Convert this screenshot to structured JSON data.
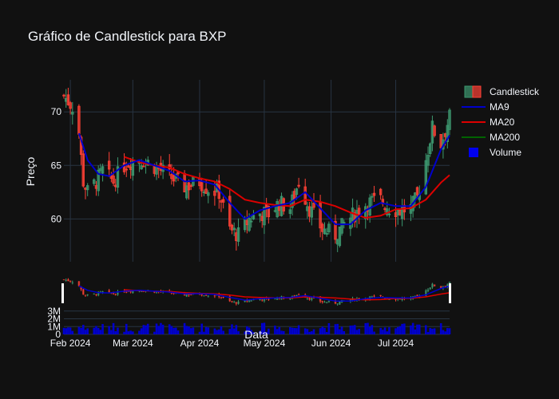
{
  "chart_data": {
    "type": "candlestick",
    "title": "Gráfico de Candlestick para BXP",
    "ylabel": "Preço",
    "xlabel": "Data",
    "ylim": [
      56,
      73
    ],
    "yticks": [
      60,
      65,
      70
    ],
    "volume_ylim": [
      0,
      4000000
    ],
    "volume_yticks": [
      {
        "v": 0,
        "label": "0"
      },
      {
        "v": 1000000,
        "label": "1M"
      },
      {
        "v": 2000000,
        "label": "2M"
      },
      {
        "v": 3000000,
        "label": "3M"
      }
    ],
    "x_start": "2024-01-29",
    "x_end": "2024-07-26",
    "xticks": [
      {
        "date": "2024-02-01",
        "label": "Feb 2024"
      },
      {
        "date": "2024-03-01",
        "label": "Mar 2024"
      },
      {
        "date": "2024-04-01",
        "label": "Apr 2024"
      },
      {
        "date": "2024-05-01",
        "label": "May 2024"
      },
      {
        "date": "2024-06-01",
        "label": "Jun 2024"
      },
      {
        "date": "2024-07-01",
        "label": "Jul 2024"
      }
    ],
    "grid": true,
    "legend_position": "top-right",
    "legend": [
      {
        "name": "Candlestick",
        "kind": "candle"
      },
      {
        "name": "MA9",
        "kind": "line",
        "color": "#0000cc"
      },
      {
        "name": "MA20",
        "kind": "line",
        "color": "#dd0000"
      },
      {
        "name": "MA200",
        "kind": "line",
        "color": "#006400"
      },
      {
        "name": "Volume",
        "kind": "box",
        "color": "#0000ee"
      }
    ],
    "colors": {
      "increasing": "#3d9970",
      "decreasing": "#ff4136",
      "ma9": "#0000cc",
      "ma20": "#dd0000",
      "volume": "#0000cc",
      "background": "#111111",
      "grid": "#283442",
      "text": "#f2f5fa"
    },
    "close_anchors": [
      [
        "2024-01-29",
        71.5
      ],
      [
        "2024-01-31",
        71.0
      ],
      [
        "2024-02-02",
        70.5
      ],
      [
        "2024-02-05",
        68.0
      ],
      [
        "2024-02-07",
        63.5
      ],
      [
        "2024-02-09",
        62.5
      ],
      [
        "2024-02-13",
        63.5
      ],
      [
        "2024-02-16",
        64.5
      ],
      [
        "2024-02-21",
        63.5
      ],
      [
        "2024-02-26",
        65.0
      ],
      [
        "2024-03-01",
        65.5
      ],
      [
        "2024-03-06",
        65.5
      ],
      [
        "2024-03-12",
        64.8
      ],
      [
        "2024-03-18",
        64.0
      ],
      [
        "2024-03-25",
        63.0
      ],
      [
        "2024-04-01",
        63.5
      ],
      [
        "2024-04-05",
        62.8
      ],
      [
        "2024-04-10",
        62.5
      ],
      [
        "2024-04-15",
        59.0
      ],
      [
        "2024-04-19",
        58.5
      ],
      [
        "2024-04-24",
        60.0
      ],
      [
        "2024-04-29",
        60.5
      ],
      [
        "2024-05-03",
        60.5
      ],
      [
        "2024-05-08",
        61.5
      ],
      [
        "2024-05-13",
        61.0
      ],
      [
        "2024-05-17",
        63.5
      ],
      [
        "2024-05-22",
        61.0
      ],
      [
        "2024-05-28",
        59.0
      ],
      [
        "2024-06-03",
        58.5
      ],
      [
        "2024-06-07",
        59.5
      ],
      [
        "2024-06-12",
        60.5
      ],
      [
        "2024-06-18",
        61.5
      ],
      [
        "2024-06-24",
        61.8
      ],
      [
        "2024-06-28",
        61.0
      ],
      [
        "2024-07-03",
        60.8
      ],
      [
        "2024-07-08",
        61.0
      ],
      [
        "2024-07-11",
        62.0
      ],
      [
        "2024-07-15",
        65.5
      ],
      [
        "2024-07-18",
        68.5
      ],
      [
        "2024-07-22",
        67.0
      ],
      [
        "2024-07-26",
        69.5
      ]
    ],
    "ma9_points": [
      [
        "2024-02-05",
        68.0
      ],
      [
        "2024-02-09",
        65.5
      ],
      [
        "2024-02-14",
        64.2
      ],
      [
        "2024-02-19",
        64.0
      ],
      [
        "2024-02-26",
        65.0
      ],
      [
        "2024-03-04",
        65.5
      ],
      [
        "2024-03-11",
        65.0
      ],
      [
        "2024-03-18",
        64.5
      ],
      [
        "2024-03-25",
        63.5
      ],
      [
        "2024-04-01",
        63.6
      ],
      [
        "2024-04-08",
        63.2
      ],
      [
        "2024-04-15",
        61.5
      ],
      [
        "2024-04-22",
        60.0
      ],
      [
        "2024-04-29",
        60.8
      ],
      [
        "2024-05-06",
        61.2
      ],
      [
        "2024-05-13",
        61.5
      ],
      [
        "2024-05-20",
        62.5
      ],
      [
        "2024-05-27",
        61.0
      ],
      [
        "2024-06-03",
        59.5
      ],
      [
        "2024-06-10",
        59.5
      ],
      [
        "2024-06-17",
        60.8
      ],
      [
        "2024-06-24",
        61.5
      ],
      [
        "2024-07-01",
        61.2
      ],
      [
        "2024-07-08",
        61.2
      ],
      [
        "2024-07-15",
        63.0
      ],
      [
        "2024-07-22",
        66.5
      ],
      [
        "2024-07-26",
        67.8
      ]
    ],
    "ma20_points": [
      [
        "2024-02-26",
        65.8
      ],
      [
        "2024-03-04",
        65.3
      ],
      [
        "2024-03-11",
        65.0
      ],
      [
        "2024-03-18",
        64.8
      ],
      [
        "2024-03-25",
        64.2
      ],
      [
        "2024-04-01",
        63.8
      ],
      [
        "2024-04-08",
        63.5
      ],
      [
        "2024-04-15",
        62.8
      ],
      [
        "2024-04-22",
        61.8
      ],
      [
        "2024-04-29",
        61.5
      ],
      [
        "2024-05-06",
        61.3
      ],
      [
        "2024-05-13",
        61.2
      ],
      [
        "2024-05-20",
        61.8
      ],
      [
        "2024-05-27",
        61.6
      ],
      [
        "2024-06-03",
        61.2
      ],
      [
        "2024-06-10",
        60.6
      ],
      [
        "2024-06-17",
        60.1
      ],
      [
        "2024-06-24",
        60.3
      ],
      [
        "2024-07-01",
        60.9
      ],
      [
        "2024-07-08",
        61.0
      ],
      [
        "2024-07-15",
        61.8
      ],
      [
        "2024-07-22",
        63.4
      ],
      [
        "2024-07-26",
        64.1
      ]
    ],
    "volume_range": [
      300000,
      1500000
    ]
  }
}
